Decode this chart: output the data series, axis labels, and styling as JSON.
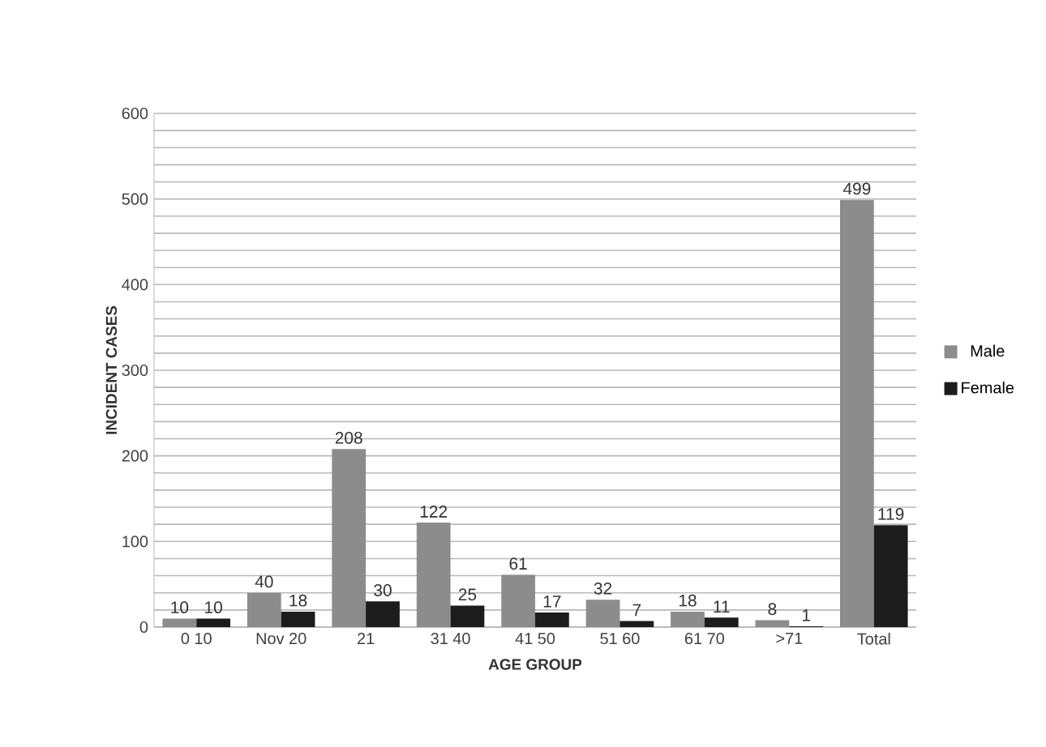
{
  "chart_data": {
    "type": "bar",
    "xlabel": "AGE GROUP",
    "ylabel": "INCIDENT CASES",
    "categories": [
      "0 10",
      "Nov 20",
      "21",
      "31 40",
      "41 50",
      "51 60",
      "61 70",
      ">71",
      "Total"
    ],
    "series": [
      {
        "name": "Male",
        "color": "#8c8c8c",
        "values": [
          10,
          40,
          208,
          122,
          61,
          32,
          18,
          8,
          499
        ]
      },
      {
        "name": "Female",
        "color": "#1c1c1c",
        "values": [
          10,
          18,
          30,
          25,
          17,
          7,
          11,
          1,
          119
        ]
      }
    ],
    "ylim": [
      0,
      600
    ],
    "yticks": [
      0,
      {
        "value": 20,
        "label": null
      },
      {
        "value": 40,
        "label": null
      },
      {
        "value": 60,
        "label": null
      },
      {
        "value": 80,
        "label": null
      },
      100,
      {
        "value": 120,
        "label": null
      },
      {
        "value": 140,
        "label": null
      },
      {
        "value": 160,
        "label": null
      },
      {
        "value": 180,
        "label": null
      },
      200,
      {
        "value": 220,
        "label": null
      },
      {
        "value": 240,
        "label": null
      },
      {
        "value": 260,
        "label": null
      },
      {
        "value": 280,
        "label": null
      },
      300,
      {
        "value": 320,
        "label": null
      },
      {
        "value": 340,
        "label": null
      },
      {
        "value": 360,
        "label": null
      },
      {
        "value": 380,
        "label": null
      },
      400,
      {
        "value": 420,
        "label": null
      },
      {
        "value": 440,
        "label": null
      },
      {
        "value": 460,
        "label": null
      },
      {
        "value": 480,
        "label": null
      },
      500,
      {
        "value": 520,
        "label": null
      },
      {
        "value": 540,
        "label": null
      },
      {
        "value": 560,
        "label": null
      },
      {
        "value": 580,
        "label": null
      },
      600
    ],
    "grid": "y",
    "legend": "right",
    "data_labels": true
  }
}
